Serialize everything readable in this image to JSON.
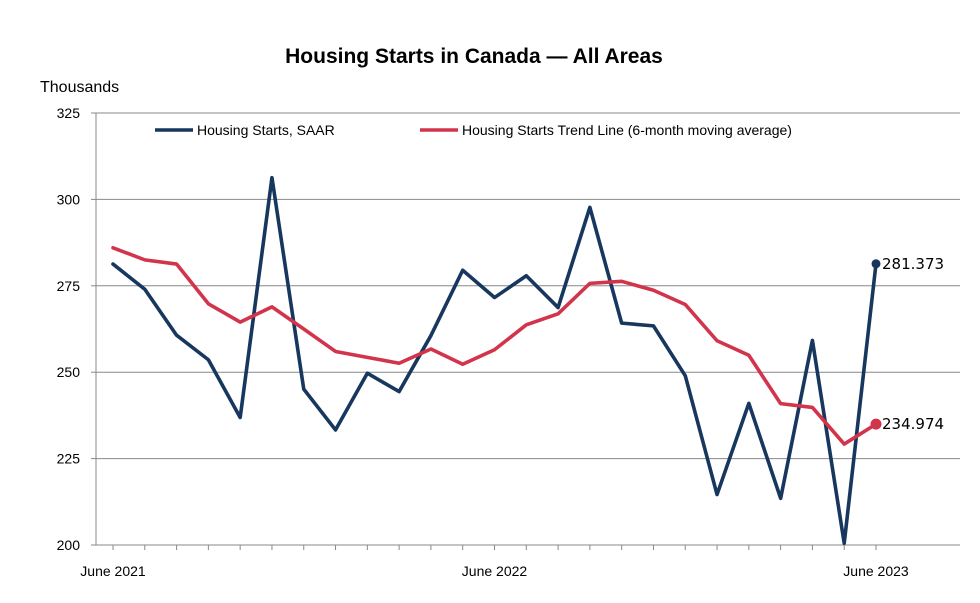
{
  "chart_data": {
    "type": "line",
    "title": "Housing Starts in Canada  — All Areas",
    "ylabel": "Thousands",
    "xlabel": "",
    "ylim": [
      200,
      325
    ],
    "yticks": [
      "325",
      "300",
      "275",
      "250",
      "225",
      "200"
    ],
    "xtick_labels": [
      {
        "label": "June 2021",
        "index": 0
      },
      {
        "label": "June 2022",
        "index": 12
      },
      {
        "label": "June 2023",
        "index": 24
      }
    ],
    "x": [
      "Jun 2021",
      "Jul 2021",
      "Aug 2021",
      "Sep 2021",
      "Oct 2021",
      "Nov 2021",
      "Dec 2021",
      "Jan 2022",
      "Feb 2022",
      "Mar 2022",
      "Apr 2022",
      "May 2022",
      "Jun 2022",
      "Jul 2022",
      "Aug 2022",
      "Sep 2022",
      "Oct 2022",
      "Nov 2022",
      "Dec 2022",
      "Jan 2023",
      "Feb 2023",
      "Mar 2023",
      "Apr 2023",
      "May 2023",
      "Jun 2023"
    ],
    "grid": true,
    "legend_position": "top",
    "series": [
      {
        "name": "Housing Starts, SAAR",
        "color": "#17375e",
        "values": [
          281.3,
          274.0,
          260.7,
          253.6,
          236.9,
          306.3,
          245.1,
          233.3,
          249.7,
          244.4,
          260.6,
          279.5,
          271.6,
          277.9,
          268.7,
          297.7,
          264.2,
          263.4,
          249.0,
          214.6,
          241.0,
          213.5,
          259.2,
          200.5,
          281.373
        ],
        "end_label": "281.373"
      },
      {
        "name": "Housing Starts Trend Line (6-month moving average)",
        "color": "#d2344c",
        "values": [
          286.0,
          282.5,
          281.3,
          269.8,
          264.5,
          268.9,
          262.5,
          256.0,
          254.3,
          252.6,
          256.7,
          252.3,
          256.5,
          263.7,
          266.9,
          275.7,
          276.3,
          273.7,
          269.6,
          259.1,
          254.9,
          240.9,
          239.8,
          229.2,
          234.974
        ],
        "end_label": "234.974"
      }
    ]
  }
}
